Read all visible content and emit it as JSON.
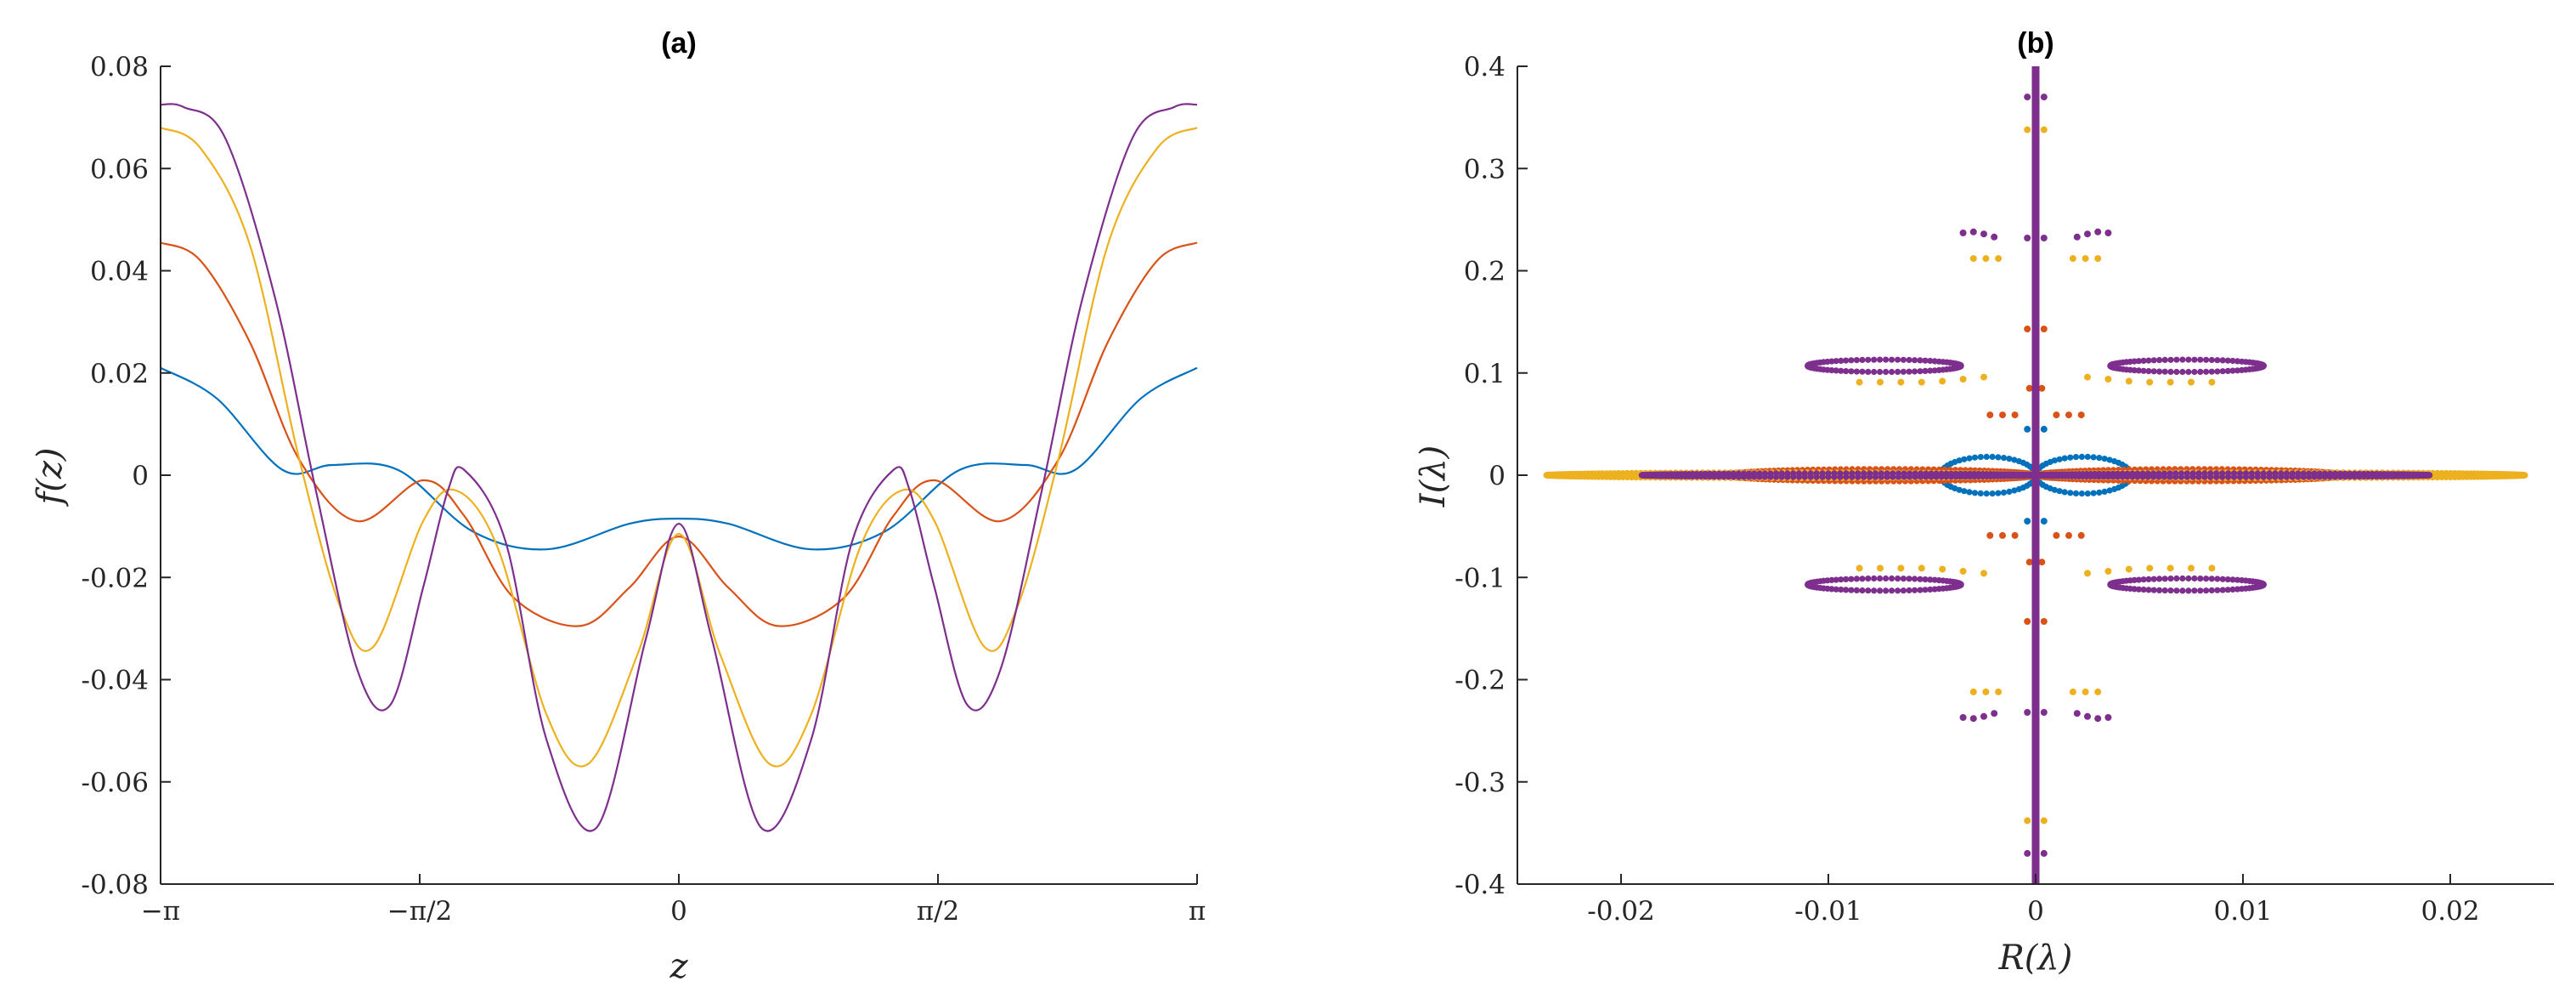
{
  "chart_data": [
    {
      "id": "a",
      "type": "line",
      "title": "(a)",
      "xlabel": "z",
      "ylabel": "f(z)",
      "xlim": [
        -3.14159,
        3.14159
      ],
      "ylim": [
        -0.08,
        0.08
      ],
      "xticks": [
        {
          "value": -3.14159,
          "label": "−π"
        },
        {
          "value": -1.5708,
          "label": "−π/2"
        },
        {
          "value": 0,
          "label": "0"
        },
        {
          "value": 1.5708,
          "label": "π/2"
        },
        {
          "value": 3.14159,
          "label": "π"
        }
      ],
      "yticks": [
        {
          "value": 0.08,
          "label": "0.08"
        },
        {
          "value": 0.06,
          "label": "0.06"
        },
        {
          "value": 0.04,
          "label": "0.04"
        },
        {
          "value": 0.02,
          "label": "0.02"
        },
        {
          "value": 0,
          "label": "0"
        },
        {
          "value": -0.02,
          "label": "-0.02"
        },
        {
          "value": -0.04,
          "label": "-0.04"
        },
        {
          "value": -0.06,
          "label": "-0.06"
        },
        {
          "value": -0.08,
          "label": "-0.08"
        }
      ],
      "grid": false,
      "series": [
        {
          "color": "#0072BD",
          "x": [
            0,
            0.3,
            0.8,
            1.25,
            1.7,
            2.1,
            2.4,
            2.8,
            3.14159
          ],
          "y": [
            -0.0085,
            -0.0095,
            -0.0145,
            -0.011,
            0.001,
            0.002,
            0.001,
            0.015,
            0.021
          ]
        },
        {
          "color": "#D95319",
          "x": [
            0,
            0.3,
            0.6,
            1.0,
            1.3,
            1.55,
            1.95,
            2.3,
            2.6,
            2.9,
            3.14159
          ],
          "y": [
            -0.012,
            -0.022,
            -0.0295,
            -0.024,
            -0.008,
            -0.001,
            -0.009,
            0.003,
            0.026,
            0.042,
            0.0455
          ]
        },
        {
          "color": "#EDB120",
          "x": [
            0,
            0.25,
            0.55,
            0.8,
            1.1,
            1.35,
            1.55,
            1.85,
            2.05,
            2.3,
            2.6,
            2.9,
            3.14159
          ],
          "y": [
            -0.0115,
            -0.035,
            -0.0565,
            -0.047,
            -0.014,
            -0.003,
            -0.009,
            -0.0335,
            -0.026,
            0.003,
            0.045,
            0.064,
            0.068
          ]
        },
        {
          "color": "#7E2F8E",
          "x": [
            0,
            0.2,
            0.5,
            0.8,
            1.05,
            1.3,
            1.4,
            1.55,
            1.75,
            1.95,
            2.2,
            2.45,
            2.75,
            3.0,
            3.14159
          ],
          "y": [
            -0.0095,
            -0.032,
            -0.069,
            -0.052,
            -0.013,
            0.001,
            -0.003,
            -0.022,
            -0.045,
            -0.038,
            -0.003,
            0.035,
            0.066,
            0.072,
            0.0725
          ]
        }
      ]
    },
    {
      "id": "b",
      "type": "scatter",
      "title": "(b)",
      "xlabel": "R(λ)",
      "ylabel": "I(λ)",
      "xlim": [
        -0.025,
        0.025
      ],
      "ylim": [
        -0.4,
        0.4
      ],
      "xticks": [
        {
          "value": -0.02,
          "label": "-0.02"
        },
        {
          "value": -0.01,
          "label": "-0.01"
        },
        {
          "value": 0,
          "label": "0"
        },
        {
          "value": 0.01,
          "label": "0.01"
        },
        {
          "value": 0.02,
          "label": "0.02"
        }
      ],
      "yticks": [
        {
          "value": 0.4,
          "label": "0.4"
        },
        {
          "value": 0.3,
          "label": "0.3"
        },
        {
          "value": 0.2,
          "label": "0.2"
        },
        {
          "value": 0.1,
          "label": "0.1"
        },
        {
          "value": 0,
          "label": "0"
        },
        {
          "value": -0.1,
          "label": "-0.1"
        },
        {
          "value": -0.2,
          "label": "-0.2"
        },
        {
          "value": -0.3,
          "label": "-0.3"
        },
        {
          "value": -0.4,
          "label": "-0.4"
        }
      ],
      "grid": false,
      "series": [
        {
          "color": "#0072BD",
          "loops": [
            {
              "cx": -0.0023,
              "cy": 0,
              "rx": 0.0023,
              "ry": 0.018
            },
            {
              "cx": 0.0023,
              "cy": 0,
              "rx": 0.0023,
              "ry": 0.018
            }
          ],
          "points": [
            [
              -0.0004,
              0.045
            ],
            [
              0.0004,
              0.045
            ],
            [
              -0.0004,
              -0.045
            ],
            [
              0.0004,
              -0.045
            ]
          ]
        },
        {
          "color": "#D95319",
          "loops": [
            {
              "cx": -0.0075,
              "cy": 0,
              "rx": 0.0075,
              "ry": 0.006
            },
            {
              "cx": 0.0075,
              "cy": 0,
              "rx": 0.0075,
              "ry": 0.006
            }
          ],
          "points": [
            [
              -0.0004,
              0.143
            ],
            [
              0.0004,
              0.143
            ],
            [
              -0.0004,
              -0.143
            ],
            [
              0.0004,
              -0.143
            ],
            [
              -0.0022,
              0.059
            ],
            [
              -0.0016,
              0.059
            ],
            [
              -0.001,
              0.059
            ],
            [
              0.001,
              0.059
            ],
            [
              0.0016,
              0.059
            ],
            [
              0.0022,
              0.059
            ],
            [
              -0.0022,
              -0.059
            ],
            [
              -0.0016,
              -0.059
            ],
            [
              -0.001,
              -0.059
            ],
            [
              0.001,
              -0.059
            ],
            [
              0.0016,
              -0.059
            ],
            [
              0.0022,
              -0.059
            ],
            [
              -0.0003,
              0.085
            ],
            [
              0.0003,
              0.085
            ],
            [
              -0.0003,
              -0.085
            ],
            [
              0.0003,
              -0.085
            ]
          ]
        },
        {
          "color": "#EDB120",
          "loops": [
            {
              "cx": -0.0118,
              "cy": 0,
              "rx": 0.0118,
              "ry": 0.0028
            },
            {
              "cx": 0.0118,
              "cy": 0,
              "rx": 0.0118,
              "ry": 0.0028
            }
          ],
          "points": [
            [
              -0.0004,
              0.338
            ],
            [
              0.0004,
              0.338
            ],
            [
              -0.0004,
              -0.338
            ],
            [
              0.0004,
              -0.338
            ],
            [
              -0.003,
              0.212
            ],
            [
              -0.0024,
              0.212
            ],
            [
              -0.0018,
              0.212
            ],
            [
              0.0018,
              0.212
            ],
            [
              0.0024,
              0.212
            ],
            [
              0.003,
              0.212
            ],
            [
              -0.003,
              -0.212
            ],
            [
              -0.0024,
              -0.212
            ],
            [
              -0.0018,
              -0.212
            ],
            [
              0.0018,
              -0.212
            ],
            [
              0.0024,
              -0.212
            ],
            [
              0.003,
              -0.212
            ],
            [
              -0.0085,
              0.091
            ],
            [
              -0.0075,
              0.091
            ],
            [
              -0.0065,
              0.091
            ],
            [
              -0.0055,
              0.091
            ],
            [
              -0.0045,
              0.092
            ],
            [
              -0.0035,
              0.094
            ],
            [
              -0.0025,
              0.096
            ],
            [
              0.0025,
              0.096
            ],
            [
              0.0035,
              0.094
            ],
            [
              0.0045,
              0.092
            ],
            [
              0.0055,
              0.091
            ],
            [
              0.0065,
              0.091
            ],
            [
              0.0075,
              0.091
            ],
            [
              0.0085,
              0.091
            ],
            [
              -0.0085,
              -0.091
            ],
            [
              -0.0075,
              -0.091
            ],
            [
              -0.0065,
              -0.091
            ],
            [
              -0.0055,
              -0.091
            ],
            [
              -0.0045,
              -0.092
            ],
            [
              -0.0035,
              -0.094
            ],
            [
              -0.0025,
              -0.096
            ],
            [
              0.0025,
              -0.096
            ],
            [
              0.0035,
              -0.094
            ],
            [
              0.0045,
              -0.092
            ],
            [
              0.0055,
              -0.091
            ],
            [
              0.0065,
              -0.091
            ],
            [
              0.0075,
              -0.091
            ],
            [
              0.0085,
              -0.091
            ]
          ]
        },
        {
          "color": "#7E2F8E",
          "vertical_line": {
            "x": 0,
            "y": [
              -0.4,
              0.4
            ]
          },
          "loops": [
            {
              "cx": -0.0095,
              "cy": 0,
              "rx": 0.0095,
              "ry": 0.0018
            },
            {
              "cx": 0.0095,
              "cy": 0,
              "rx": 0.0095,
              "ry": 0.0018
            },
            {
              "cx": -0.0073,
              "cy": 0.107,
              "rx": 0.0037,
              "ry": 0.006
            },
            {
              "cx": 0.0073,
              "cy": 0.107,
              "rx": 0.0037,
              "ry": 0.006
            },
            {
              "cx": -0.0073,
              "cy": -0.107,
              "rx": 0.0037,
              "ry": 0.006
            },
            {
              "cx": 0.0073,
              "cy": -0.107,
              "rx": 0.0037,
              "ry": 0.006
            }
          ],
          "points": [
            [
              -0.0004,
              0.37
            ],
            [
              0.0004,
              0.37
            ],
            [
              -0.0004,
              -0.37
            ],
            [
              0.0004,
              -0.37
            ],
            [
              -0.0035,
              0.237
            ],
            [
              -0.003,
              0.238
            ],
            [
              -0.0025,
              0.236
            ],
            [
              -0.002,
              0.233
            ],
            [
              0.002,
              0.233
            ],
            [
              0.0025,
              0.236
            ],
            [
              0.003,
              0.238
            ],
            [
              0.0035,
              0.237
            ],
            [
              -0.0035,
              -0.237
            ],
            [
              -0.003,
              -0.238
            ],
            [
              -0.0025,
              -0.236
            ],
            [
              -0.002,
              -0.233
            ],
            [
              0.002,
              -0.233
            ],
            [
              0.0025,
              -0.236
            ],
            [
              0.003,
              -0.238
            ],
            [
              0.0035,
              -0.237
            ],
            [
              -0.0004,
              0.232
            ],
            [
              0.0004,
              0.232
            ],
            [
              -0.0004,
              -0.232
            ],
            [
              0.0004,
              -0.232
            ]
          ]
        }
      ]
    }
  ]
}
